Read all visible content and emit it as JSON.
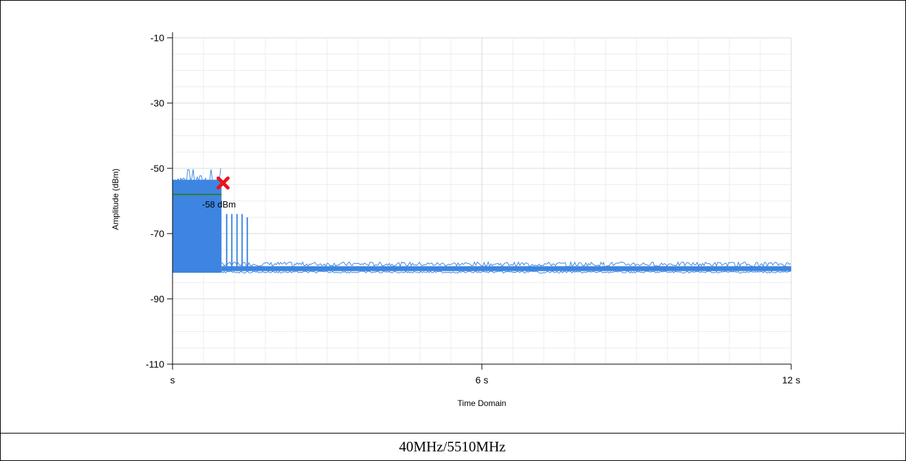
{
  "chart_data": {
    "type": "line",
    "title": "",
    "xlabel": "Time Domain",
    "ylabel": "Amplitude (dBm)",
    "xlim": [
      0,
      12
    ],
    "ylim": [
      -110,
      -10
    ],
    "x_ticks": [
      {
        "value": 0,
        "label": "s"
      },
      {
        "value": 6,
        "label": "6 s"
      },
      {
        "value": 12,
        "label": "12 s"
      }
    ],
    "y_ticks": [
      {
        "value": -10,
        "label": "-10"
      },
      {
        "value": -30,
        "label": "-30"
      },
      {
        "value": -50,
        "label": "-50"
      },
      {
        "value": -70,
        "label": "-70"
      },
      {
        "value": -90,
        "label": "-90"
      },
      {
        "value": -110,
        "label": "-110"
      }
    ],
    "grid": true,
    "series": [
      {
        "color": "#3d85e0",
        "burst": {
          "x_start": 0,
          "x_end": 0.95,
          "top": -53.5,
          "bottom": -82
        },
        "spikes": [
          {
            "x": 1.05,
            "y": -64
          },
          {
            "x": 1.15,
            "y": -64
          },
          {
            "x": 1.25,
            "y": -64
          },
          {
            "x": 1.35,
            "y": -64
          },
          {
            "x": 1.45,
            "y": -65
          }
        ],
        "noise_floor": {
          "x_start": 0.95,
          "x_end": 12,
          "top": -80,
          "bottom": -81.5
        }
      }
    ],
    "threshold": {
      "value": -58,
      "x_start": 0,
      "x_end": 0.95,
      "color": "#2e7d32",
      "label": "-58 dBm"
    },
    "marker": {
      "x": 0.98,
      "y": -54.5,
      "color": "#e8141d"
    }
  },
  "caption": "40MHz/5510MHz"
}
